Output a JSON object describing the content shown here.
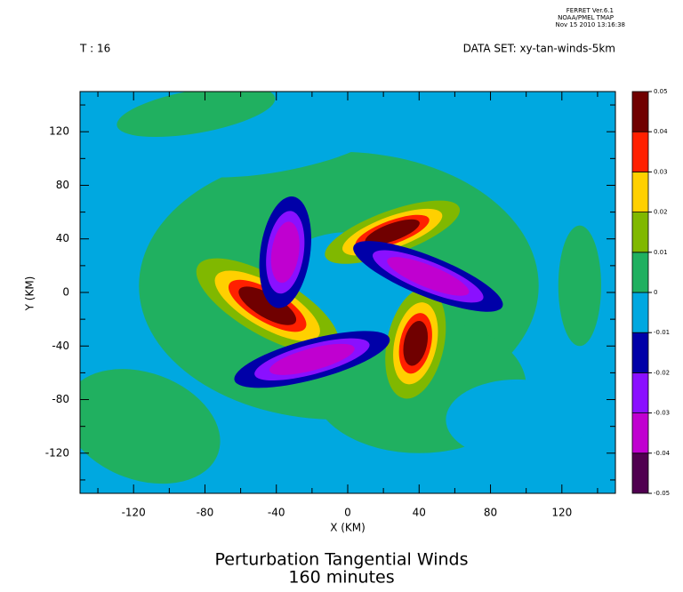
{
  "chart_data": {
    "type": "contour",
    "header": [
      "FERRET  Ver.6.1",
      "NOAA/PMEL TMAP",
      "Nov 15 2010 13:16:38"
    ],
    "time_label": "T : 16",
    "dataset_label": "DATA SET: xy-tan-winds-5km",
    "title": "Perturbation Tangential Winds",
    "subtitle": "160 minutes",
    "xlabel": "X (KM)",
    "ylabel": "Y (KM)",
    "xlim": [
      -150,
      150
    ],
    "ylim": [
      -150,
      150
    ],
    "xticks": [
      -120,
      -80,
      -40,
      0,
      40,
      80,
      120
    ],
    "yticks": [
      -120,
      -80,
      -40,
      0,
      40,
      80,
      120
    ],
    "xminorticks": [
      -140,
      -100,
      -60,
      -20,
      20,
      60,
      100,
      140
    ],
    "yminorticks": [
      -140,
      -100,
      -60,
      -20,
      20,
      60,
      100,
      140
    ],
    "levels": [
      -0.05,
      -0.04,
      -0.03,
      -0.02,
      -0.01,
      0,
      0.01,
      0.02,
      0.03,
      0.04,
      0.05
    ],
    "colors": [
      "#500050",
      "#c000d0",
      "#8a10ff",
      "#0000a8",
      "#00a8e0",
      "#20b060",
      "#80b800",
      "#ffd000",
      "#ff2000",
      "#700000"
    ]
  }
}
